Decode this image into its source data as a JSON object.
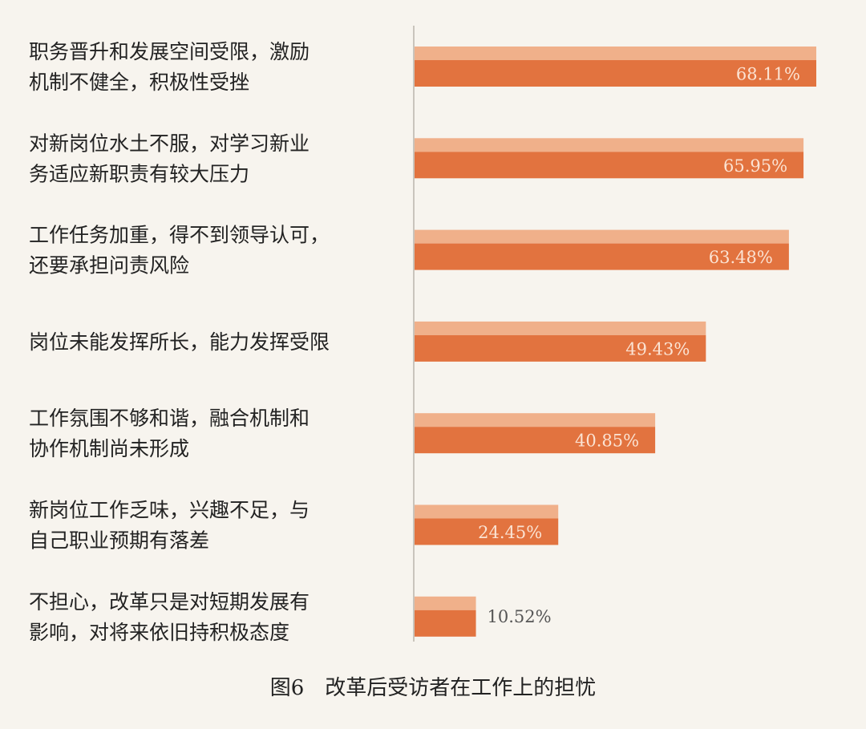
{
  "chart_data": {
    "type": "bar",
    "orientation": "horizontal",
    "title": "图6　改革后受访者在工作上的担忧",
    "categories": [
      [
        "职务晋升和发展空间受限，激励",
        "机制不健全，积极性受挫"
      ],
      [
        "对新岗位水土不服，对学习新业",
        "务适应新职责有较大压力"
      ],
      [
        "工作任务加重，得不到领导认可，",
        "还要承担问责风险"
      ],
      [
        "岗位未能发挥所长，能力发挥受限"
      ],
      [
        "工作氛围不够和谐，融合机制和",
        "协作机制尚未形成"
      ],
      [
        "新岗位工作乏味，兴趣不足，与",
        "自己职业预期有落差"
      ],
      [
        "不担心，改革只是对短期发展有",
        "影响，对将来依旧持积极态度"
      ]
    ],
    "values": [
      68.11,
      65.95,
      63.48,
      49.43,
      40.85,
      24.45,
      10.52
    ],
    "value_labels": [
      "68.11%",
      "65.95%",
      "63.48%",
      "49.43%",
      "40.85%",
      "24.45%",
      "10.52%"
    ],
    "xlim": [
      0,
      70
    ],
    "grid": false,
    "legend": "none",
    "colors": {
      "background": "#f7f4ee",
      "bar_light": "#f0b08a",
      "bar_dark": "#e2733f",
      "axis_line": "#c9c4bc",
      "label_inside": "#fbe3d3",
      "label_outside": "#555555",
      "text": "#222222"
    }
  }
}
